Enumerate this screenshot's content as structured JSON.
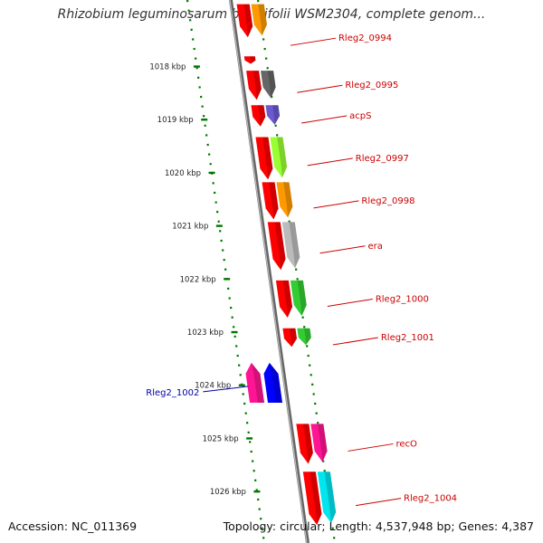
{
  "title": "Rhizobium leguminosarum bv. trifolii WSM2304, complete genom...",
  "accession": "Accession: NC_011369",
  "topology": "Topology: circular; Length: 4,537,948 bp; Genes: 4,387",
  "ticks": [
    {
      "label": "1018 kbp",
      "kbp": 1018
    },
    {
      "label": "1019 kbp",
      "kbp": 1019
    },
    {
      "label": "1020 kbp",
      "kbp": 1020
    },
    {
      "label": "1021 kbp",
      "kbp": 1021
    },
    {
      "label": "1022 kbp",
      "kbp": 1022
    },
    {
      "label": "1023 kbp",
      "kbp": 1023
    },
    {
      "label": "1024 kbp",
      "kbp": 1024
    },
    {
      "label": "1025 kbp",
      "kbp": 1025
    },
    {
      "label": "1026 kbp",
      "kbp": 1026
    }
  ],
  "colors": {
    "cds": "#ff0000",
    "label_forward": "#cc0000",
    "label_reverse": "#0000aa",
    "backbone": "#888888",
    "ticks": "#007700"
  },
  "genes": [
    {
      "name": "",
      "strand": "+",
      "start_kbp": 1017.1,
      "end_kbp": 1017.72,
      "color": "#33cc33"
    },
    {
      "name": "",
      "strand": "+",
      "start_kbp": 1017.1,
      "end_kbp": 1017.72,
      "color": "#ff9900"
    },
    {
      "name": "Rleg2_0994",
      "strand": "+",
      "start_kbp": 1017.8,
      "end_kbp": 1017.95,
      "color": "#ffffff"
    },
    {
      "name": "",
      "strand": "+",
      "start_kbp": 1018.08,
      "end_kbp": 1018.22,
      "color": "#ff0000"
    },
    {
      "name": "Rleg2_0995",
      "strand": "+",
      "start_kbp": 1018.35,
      "end_kbp": 1018.9,
      "color": "#666666"
    },
    {
      "name": "acpS",
      "strand": "+",
      "start_kbp": 1019.0,
      "end_kbp": 1019.4,
      "color": "#6a5acd"
    },
    {
      "name": "Rleg2_0997",
      "strand": "+",
      "start_kbp": 1019.6,
      "end_kbp": 1020.4,
      "color": "#99ff33"
    },
    {
      "name": "Rleg2_0998",
      "strand": "+",
      "start_kbp": 1020.45,
      "end_kbp": 1021.15,
      "color": "#ff9900"
    },
    {
      "name": "era",
      "strand": "+",
      "start_kbp": 1021.2,
      "end_kbp": 1022.1,
      "color": "#bbbbbb"
    },
    {
      "name": "Rleg2_1000",
      "strand": "+",
      "start_kbp": 1022.3,
      "end_kbp": 1023.0,
      "color": "#33cc33"
    },
    {
      "name": "Rleg2_1001",
      "strand": "+",
      "start_kbp": 1023.2,
      "end_kbp": 1023.55,
      "color": "#33cc33"
    },
    {
      "name": "Rleg2_1002",
      "strand": "-",
      "start_kbp": 1023.85,
      "end_kbp": 1024.6,
      "color": "#ff1493"
    },
    {
      "name": "",
      "strand": "-",
      "start_kbp": 1023.85,
      "end_kbp": 1024.6,
      "color": "#0000ff"
    },
    {
      "name": "recO",
      "strand": "+",
      "start_kbp": 1025.0,
      "end_kbp": 1025.75,
      "color": "#ff1493"
    },
    {
      "name": "Rleg2_1004",
      "strand": "+",
      "start_kbp": 1025.9,
      "end_kbp": 1026.9,
      "color": "#00e5ee"
    }
  ]
}
